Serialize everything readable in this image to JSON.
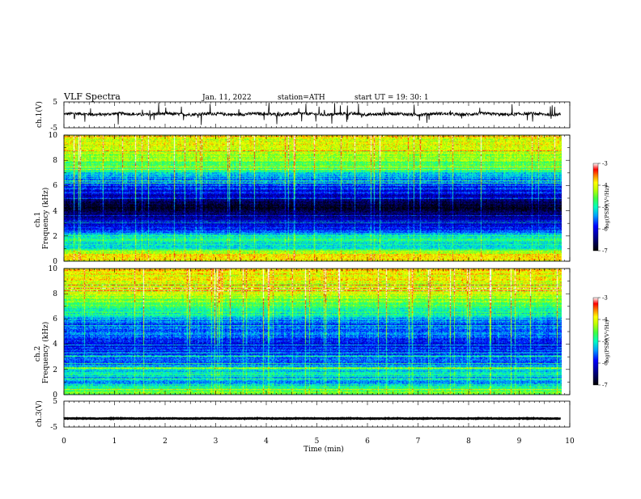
{
  "header": {
    "title": "VLF Spectra",
    "date": "Jan. 11, 2022",
    "station": "station=ATH",
    "start": "start UT =  19: 30: 1"
  },
  "chart_data": {
    "type": "heatmap",
    "x_axis": {
      "label": "Time (min)",
      "range": [
        0,
        10
      ],
      "ticks": [
        "0",
        "1",
        "2",
        "3",
        "4",
        "5",
        "6",
        "7",
        "8",
        "9",
        "10"
      ]
    },
    "panels": [
      {
        "type": "line",
        "ylabel": "ch.1(V)",
        "ylim": [
          -5,
          5
        ],
        "yticks": [
          "5",
          "-5"
        ],
        "baseline": 0.3,
        "noise_amplitude": 1.2,
        "series_color": "#000000"
      },
      {
        "type": "heatmap",
        "ylabel": "ch.1\nFrequency (kHz)",
        "ylim": [
          0,
          10
        ],
        "yticks": [
          "0",
          "2",
          "4",
          "6",
          "8",
          "10"
        ],
        "colorbar": {
          "label": "log(PSD)(V²/Hz)",
          "range": [
            -7,
            -3
          ],
          "ticks": [
            "-3",
            "-4",
            "-5",
            "-6",
            "-7"
          ]
        },
        "profile": [
          [
            0.0,
            -4.0
          ],
          [
            0.4,
            -3.8
          ],
          [
            0.8,
            -4.6
          ],
          [
            1.2,
            -5.2
          ],
          [
            1.6,
            -5.0
          ],
          [
            2.0,
            -4.9
          ],
          [
            2.4,
            -5.8
          ],
          [
            3.0,
            -6.2
          ],
          [
            3.5,
            -6.5
          ],
          [
            4.0,
            -6.8
          ],
          [
            4.6,
            -6.7
          ],
          [
            5.2,
            -6.1
          ],
          [
            5.8,
            -5.8
          ],
          [
            6.4,
            -5.6
          ],
          [
            7.0,
            -5.1
          ],
          [
            7.6,
            -4.6
          ],
          [
            8.2,
            -4.3
          ],
          [
            9.0,
            -4.1
          ],
          [
            10.0,
            -4.0
          ]
        ]
      },
      {
        "type": "heatmap",
        "ylabel": "ch.2\nFrequency (kHz)",
        "ylim": [
          0,
          10
        ],
        "yticks": [
          "0",
          "2",
          "4",
          "6",
          "8",
          "10"
        ],
        "colorbar": {
          "label": "log(PSD)(V²/Hz)",
          "range": [
            -7,
            -3
          ],
          "ticks": [
            "-3",
            "-4",
            "-5",
            "-6",
            "-7"
          ]
        },
        "profile": [
          [
            0.0,
            -4.5
          ],
          [
            0.5,
            -4.8
          ],
          [
            1.0,
            -5.4
          ],
          [
            1.5,
            -5.1
          ],
          [
            2.0,
            -5.0
          ],
          [
            2.5,
            -5.6
          ],
          [
            3.0,
            -5.5
          ],
          [
            3.5,
            -5.8
          ],
          [
            4.0,
            -6.0
          ],
          [
            4.5,
            -5.6
          ],
          [
            5.0,
            -5.5
          ],
          [
            5.5,
            -5.7
          ],
          [
            6.0,
            -5.3
          ],
          [
            6.5,
            -4.9
          ],
          [
            7.0,
            -4.7
          ],
          [
            7.5,
            -4.4
          ],
          [
            8.2,
            -4.2
          ],
          [
            9.0,
            -4.0
          ],
          [
            10.0,
            -3.9
          ]
        ]
      },
      {
        "type": "line",
        "ylabel": "ch.3(V)",
        "ylim": [
          -5,
          5
        ],
        "yticks": [
          "5",
          "-5"
        ],
        "baseline": -1.7,
        "noise_amplitude": 0.2,
        "series_color": "#000000"
      }
    ]
  }
}
